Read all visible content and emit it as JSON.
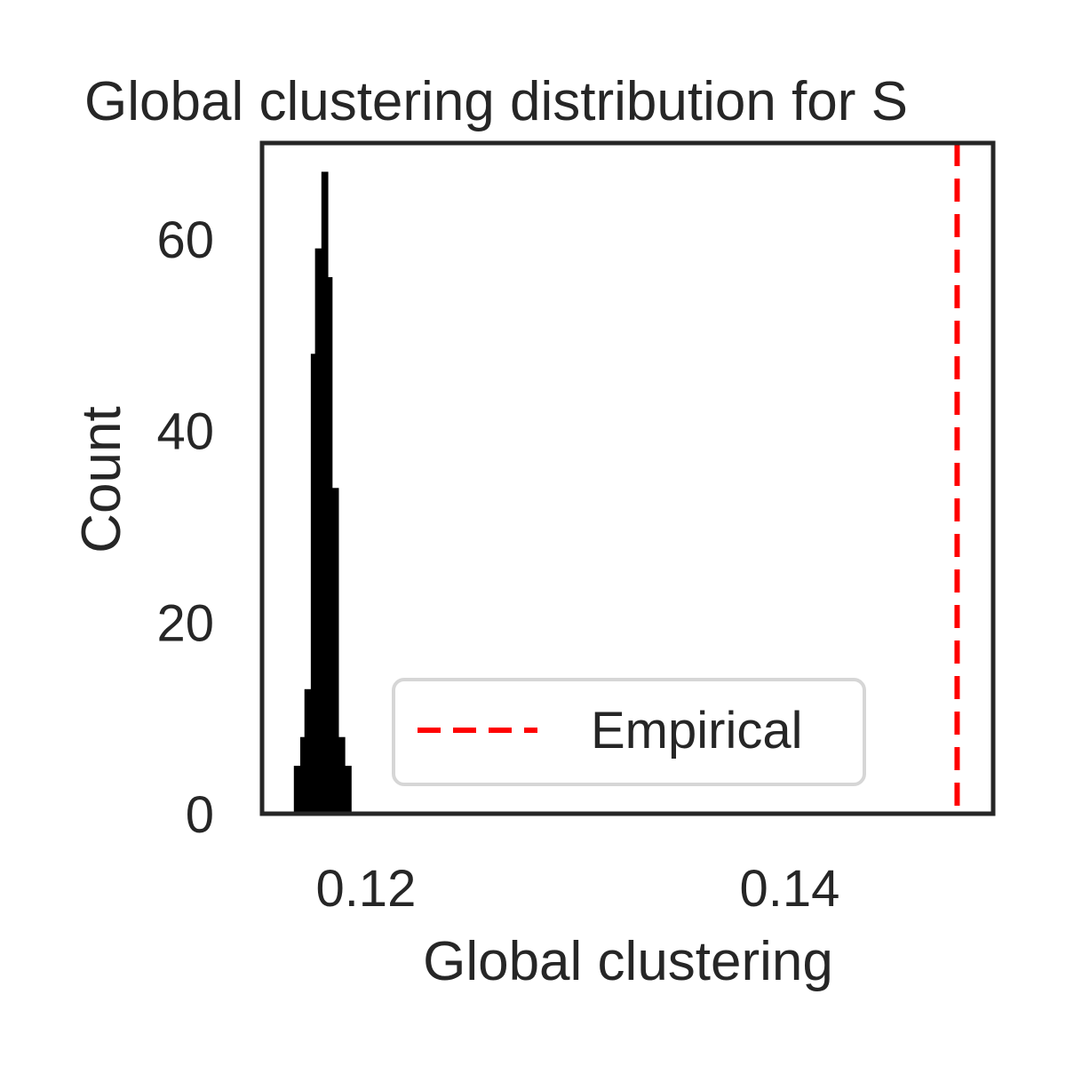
{
  "chart_data": {
    "type": "bar",
    "title": "Global clustering distribution for S",
    "xlabel": "Global clustering",
    "ylabel": "Count",
    "xlim": [
      0.1151,
      0.1496
    ],
    "ylim": [
      0,
      70
    ],
    "xticks": [
      0.12,
      0.14
    ],
    "xtick_labels": [
      "0.12",
      "0.14"
    ],
    "yticks": [
      0,
      20,
      40,
      60
    ],
    "ytick_labels": [
      "0",
      "20",
      "40",
      "60"
    ],
    "bins": [
      {
        "x0": 0.1166,
        "x1": 0.1169,
        "count": 5
      },
      {
        "x0": 0.1169,
        "x1": 0.1171,
        "count": 8
      },
      {
        "x0": 0.1171,
        "x1": 0.1174,
        "count": 13
      },
      {
        "x0": 0.1174,
        "x1": 0.1176,
        "count": 48
      },
      {
        "x0": 0.1176,
        "x1": 0.1179,
        "count": 59
      },
      {
        "x0": 0.1179,
        "x1": 0.1182,
        "count": 67
      },
      {
        "x0": 0.1182,
        "x1": 0.1184,
        "count": 56
      },
      {
        "x0": 0.1184,
        "x1": 0.1187,
        "count": 34
      },
      {
        "x0": 0.1187,
        "x1": 0.119,
        "count": 8
      },
      {
        "x0": 0.119,
        "x1": 0.1193,
        "count": 5
      }
    ],
    "bar_color": "#000000",
    "empirical": {
      "name": "Empirical",
      "x": 0.1479,
      "color": "#ff0000",
      "linestyle": "dashed"
    },
    "legend": {
      "placement": "lower-center",
      "entries": [
        "Empirical"
      ]
    },
    "grid": false
  }
}
